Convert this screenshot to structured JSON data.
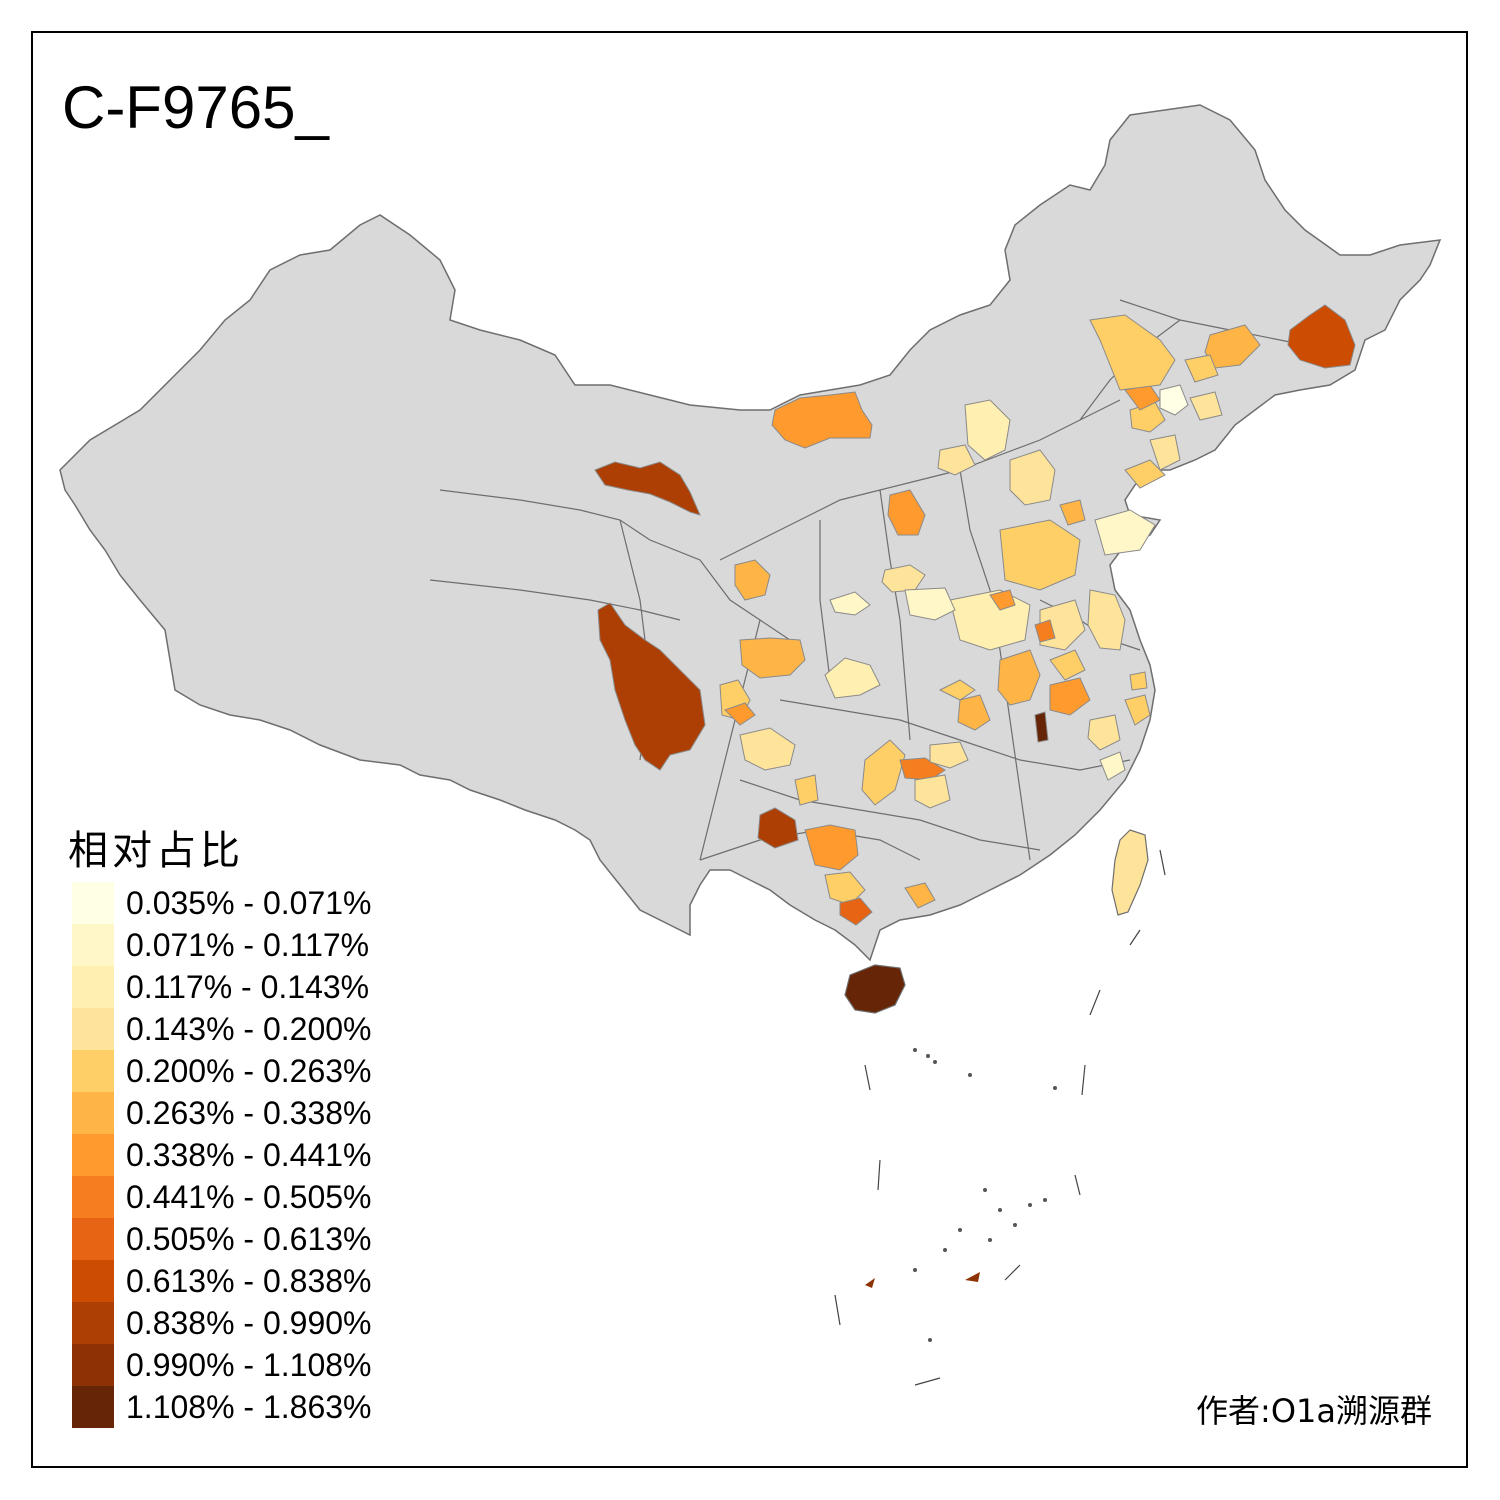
{
  "title": "C-F9765_",
  "legend": {
    "title": "相对占比",
    "items": [
      {
        "label": "0.035% - 0.071%",
        "color": "#ffffe5"
      },
      {
        "label": "0.071% - 0.117%",
        "color": "#fff7c8"
      },
      {
        "label": "0.117% - 0.143%",
        "color": "#ffefb0"
      },
      {
        "label": "0.143% - 0.200%",
        "color": "#fee49a"
      },
      {
        "label": "0.200% - 0.263%",
        "color": "#fecf66"
      },
      {
        "label": "0.263% - 0.338%",
        "color": "#feb546"
      },
      {
        "label": "0.338% - 0.441%",
        "color": "#fe9a2e"
      },
      {
        "label": "0.441% - 0.505%",
        "color": "#f57f1f"
      },
      {
        "label": "0.505% - 0.613%",
        "color": "#e66413"
      },
      {
        "label": "0.613% - 0.838%",
        "color": "#cc4c02"
      },
      {
        "label": "0.838% - 0.990%",
        "color": "#ad3f04"
      },
      {
        "label": "0.990% - 1.108%",
        "color": "#8c3205"
      },
      {
        "label": "1.108% - 1.863%",
        "color": "#662506"
      }
    ]
  },
  "author": "作者:O1a溯源群",
  "colors": {
    "base_land": "#d9d9d9",
    "border": "#6e6e6e",
    "frame": "#000000"
  }
}
